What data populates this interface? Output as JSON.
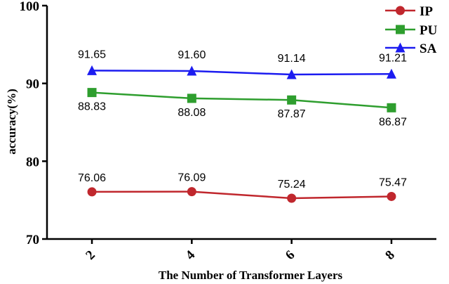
{
  "chart_data": {
    "type": "line",
    "title": "",
    "xlabel": "The Number of Transformer Layers",
    "ylabel": "accuracy(%)",
    "categories": [
      "2",
      "4",
      "6",
      "8"
    ],
    "x": [
      2,
      4,
      6,
      8
    ],
    "ylim": [
      70,
      100
    ],
    "yticks": [
      "70",
      "80",
      "90",
      "100"
    ],
    "grid": false,
    "legend_position": "top-right",
    "series": [
      {
        "name": "IP",
        "color": "#C0272D",
        "marker": "circle",
        "values": [
          76.06,
          76.09,
          75.24,
          75.47
        ],
        "labels": [
          "76.06",
          "76.09",
          "75.24",
          "75.47"
        ]
      },
      {
        "name": "PU",
        "color": "#2E9E2E",
        "marker": "square",
        "values": [
          88.83,
          88.08,
          87.87,
          86.87
        ],
        "labels": [
          "88.83",
          "88.08",
          "87.87",
          "86.87"
        ]
      },
      {
        "name": "SA",
        "color": "#1C1CF0",
        "marker": "triangle",
        "values": [
          91.65,
          91.6,
          91.14,
          91.21
        ],
        "labels": [
          "91.65",
          "91.60",
          "91.14",
          "91.21"
        ]
      }
    ]
  }
}
